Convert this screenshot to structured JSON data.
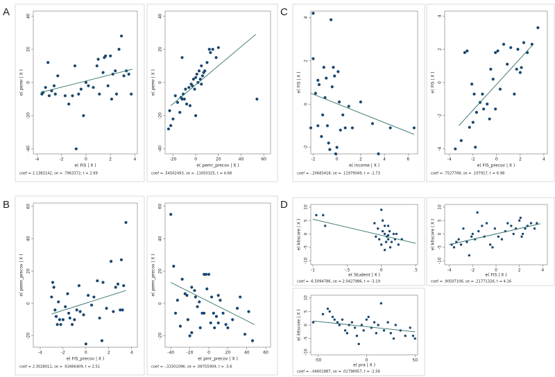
{
  "chart_data": [
    {
      "type": "scatter",
      "panel": "A",
      "xlabel": "e( FIS | X )",
      "ylabel": "e( pemr | X )",
      "note": "coef = 2.1383142, se = .7963372, t = 2.69",
      "color": "#1a476f",
      "line_color": "#2d6d66",
      "x": [
        -3.6,
        -3.5,
        -3.3,
        -3.1,
        -3,
        -2.8,
        -2.6,
        -2.5,
        -2.3,
        -1.7,
        -1.4,
        -1.1,
        -0.9,
        -0.8,
        -0.6,
        -0.4,
        -0.2,
        0,
        0.2,
        0.6,
        0.9,
        1,
        1.1,
        1.4,
        1.5,
        1.6,
        1.8,
        2,
        2.1,
        2.2,
        2.4,
        2.5,
        2.7,
        2.9,
        3.1,
        3.3,
        3.5,
        3.7
      ],
      "y": [
        -7,
        -6,
        -3,
        12,
        -8,
        -5,
        -2,
        -7,
        4,
        -8,
        -13,
        -8,
        10,
        -40,
        -7,
        -4,
        -20,
        0,
        -2,
        -3,
        10,
        14,
        -7,
        6,
        15,
        16,
        -2,
        16,
        -10,
        5,
        7,
        -7,
        20,
        28,
        4,
        7,
        5,
        -7
      ],
      "fit_x": [
        -3.7,
        3.8
      ],
      "fit_y": [
        -6,
        8
      ],
      "xlim": [
        -4.3,
        4.2
      ],
      "ylim": [
        -43,
        43
      ],
      "xticks": [
        -4,
        -2,
        0,
        2,
        4
      ],
      "yticks": [
        -40,
        -20,
        0,
        20,
        40
      ]
    },
    {
      "type": "scatter",
      "xlabel": "e( pemr_precov | X )",
      "ylabel": "e( pemr | X )",
      "note": "coef = .54502493, se = .11650325, t = 4.68",
      "color": "#1a476f",
      "line_color": "#2d6d66",
      "x": [
        -24,
        -23,
        -22,
        -20,
        -18,
        -16,
        -14,
        -13,
        -12,
        -11,
        -10,
        -9,
        -8,
        -6,
        -5,
        -4,
        -3,
        -2,
        -1,
        0,
        0,
        1,
        2,
        3,
        4,
        5,
        6,
        7,
        8,
        10,
        12,
        13,
        15,
        18,
        20,
        -12,
        5,
        54
      ],
      "y": [
        -28,
        -17,
        -26,
        -22,
        -8,
        -12,
        -18,
        -9,
        -10,
        -7,
        -10,
        -4,
        -13,
        -3,
        -14,
        -1,
        -2,
        2,
        -4,
        -20,
        3,
        5,
        0,
        7,
        2,
        10,
        4,
        6,
        7,
        12,
        20,
        18,
        20,
        15,
        21,
        15,
        -1,
        -10
      ],
      "fit_x": [
        -22,
        53
      ],
      "fit_y": [
        -14,
        29
      ],
      "xlim": [
        -27,
        66
      ],
      "ylim": [
        -43,
        43
      ],
      "xticks": [
        -20,
        0,
        20,
        40,
        60
      ],
      "yticks": [
        -40,
        -20,
        0,
        20,
        40
      ]
    },
    {
      "type": "scatter",
      "panel": "C",
      "xlabel": "e( income | X )",
      "ylabel": "e( FIS | X )",
      "note": "coef = -.20683418, se = .11979049, t = -1.73",
      "color": "#1a476f",
      "line_color": "#2d6d66",
      "x": [
        -2,
        -2,
        -1.8,
        -1.6,
        -1.6,
        -1.5,
        -1.3,
        -1.2,
        -1.1,
        -1,
        -0.9,
        -0.8,
        -0.7,
        -0.6,
        -0.5,
        -0.4,
        -0.3,
        -0.2,
        -0.1,
        0,
        0.1,
        0.2,
        0.3,
        0.5,
        0.7,
        1,
        1.3,
        2,
        3,
        3.5,
        4.5,
        6.5,
        -2.2
      ],
      "y": [
        4.2,
        2.1,
        0.5,
        1.1,
        -1,
        0.9,
        -1.5,
        -0.5,
        1.7,
        0.3,
        1.2,
        -1,
        -1.8,
        -2.1,
        3.9,
        0.8,
        1.7,
        1.3,
        -2.3,
        -2,
        1.5,
        0.1,
        -1.2,
        -0.5,
        -1.1,
        -0.1,
        -1.1,
        0.1,
        -0.9,
        -2.3,
        -1.1,
        -1.1,
        -1.1
      ],
      "fit_x": [
        -2.2,
        6.5
      ],
      "fit_y": [
        0.5,
        -1.4
      ],
      "xlim": [
        -2.2,
        6.8
      ],
      "ylim": [
        -2.3,
        4.3
      ],
      "xticks": [
        -2,
        0,
        2,
        4,
        6
      ],
      "yticks": [
        -2,
        0,
        2,
        4
      ]
    },
    {
      "type": "scatter",
      "xlabel": "e( FIS_precov | X )",
      "ylabel": "e( FIS | X )",
      "note": "coef = .7527768, se = .107917, t = 6.98",
      "color": "#1a476f",
      "line_color": "#2d6d66",
      "x": [
        -3.5,
        -3,
        -2.7,
        -2.5,
        -2.3,
        -2.1,
        -2,
        -1.9,
        -1.8,
        -1.7,
        -1.4,
        -1.2,
        -1.1,
        -0.8,
        -0.6,
        -0.5,
        -0.3,
        -0.1,
        0.1,
        0.3,
        0.6,
        0.9,
        1.2,
        1.5,
        1.7,
        1.8,
        2,
        2.1,
        2.3,
        2.6,
        3,
        3.5,
        -0.1
      ],
      "y": [
        -4,
        -3.5,
        1.8,
        1.9,
        -2.7,
        -0.1,
        -2.4,
        -0.7,
        -3.9,
        -1.8,
        -1.2,
        -0.7,
        -1.6,
        -1.3,
        -2.2,
        0.8,
        0.2,
        1.8,
        1.9,
        -0.4,
        2.3,
        1.1,
        2.1,
        -0.7,
        0.8,
        2,
        0.6,
        0.9,
        2.4,
        1.8,
        2.3,
        3.3,
        -1.6
      ],
      "fit_x": [
        -3.2,
        3.1
      ],
      "fit_y": [
        -2.6,
        2.3
      ],
      "xlim": [
        -4.4,
        4.3
      ],
      "ylim": [
        -4.3,
        4.3
      ],
      "xticks": [
        -4,
        -2,
        0,
        2,
        4
      ],
      "yticks": [
        -4,
        -2,
        0,
        2,
        4
      ]
    },
    {
      "type": "scatter",
      "panel": "B",
      "xlabel": "e( FIS_precov | X )",
      "ylabel": "e( pemr_precov | X )",
      "note": "coef = 2.3028011, se = .91666409, t = 2.51",
      "color": "#1a476f",
      "line_color": "#2d6d66",
      "x": [
        -3,
        -2.9,
        -2.8,
        -2.7,
        -2.6,
        -2.5,
        -2.4,
        -2.3,
        -2.2,
        -2,
        -1.8,
        -1.6,
        -1.5,
        -1.4,
        -1.2,
        -1,
        -0.8,
        -0.6,
        -0.5,
        -0.2,
        0,
        0.2,
        0.5,
        0.7,
        1,
        1.2,
        1.4,
        1.5,
        1.8,
        2.2,
        2.4,
        2.6,
        2.8,
        3,
        3.1,
        3.2,
        3.3,
        3.5
      ],
      "y": [
        4,
        13,
        10,
        -4,
        -8,
        -13,
        1,
        -10,
        -13,
        -10,
        -2,
        6,
        -6,
        -9,
        -13,
        -10,
        -4,
        11,
        -5,
        -7,
        -25,
        5,
        -1,
        4,
        14,
        -9,
        -23,
        13,
        -3,
        26,
        -5,
        10,
        12,
        -4,
        27,
        -4,
        11,
        50
      ],
      "fit_x": [
        -3,
        3.5
      ],
      "fit_y": [
        -6.5,
        8
      ],
      "xlim": [
        -4.6,
        4.5
      ],
      "ylim": [
        -27,
        62
      ],
      "xticks": [
        -4,
        -2,
        0,
        2,
        4
      ],
      "yticks": [
        -20,
        0,
        20,
        40,
        60
      ]
    },
    {
      "type": "scatter",
      "xlabel": "e( pmr_precov | X )",
      "ylabel": "e( pemr_precov | X )",
      "note": "coef = -.31501096, se = .08755909, t = -3.6",
      "color": "#1a476f",
      "line_color": "#2d6d66",
      "x": [
        -40,
        -37,
        -35,
        -33,
        -30,
        -28,
        -25,
        -23,
        -22,
        -20,
        -18,
        -15,
        -14,
        -12,
        -10,
        -9,
        -7,
        -5,
        -3,
        -2,
        0,
        2,
        3,
        5,
        6,
        8,
        10,
        12,
        15,
        18,
        20,
        25,
        30,
        33,
        38,
        42,
        46,
        -18,
        -5,
        10
      ],
      "y": [
        55,
        23,
        -6,
        2,
        -14,
        15,
        6,
        5,
        -10,
        -20,
        10,
        8,
        4,
        -2,
        1,
        -15,
        -6,
        18,
        18,
        9,
        18,
        -12,
        4,
        -6,
        -15,
        -8,
        -12,
        2,
        -6,
        -13,
        -15,
        -10,
        -3,
        4,
        -19,
        -5,
        -23,
        -18,
        -6,
        5
      ],
      "fit_x": [
        -40,
        48
      ],
      "fit_y": [
        13,
        -13
      ],
      "xlim": [
        -46,
        65
      ],
      "ylim": [
        -27,
        62
      ],
      "xticks": [
        -40,
        -20,
        0,
        20,
        40,
        60
      ],
      "yticks": [
        -20,
        0,
        20,
        40,
        60
      ]
    },
    {
      "type": "scatter",
      "panel": "D",
      "xlabel": "e( Student | X )",
      "ylabel": "e( k6score | X )",
      "note": "coef = -6.5094786, se = 2.0427986, t = -3.19",
      "color": "#1a476f",
      "line_color": "#2d6d66",
      "x": [
        -0.95,
        -0.85,
        -0.82,
        0,
        0,
        0.05,
        0.1,
        -0.05,
        0.02,
        0.05,
        0.08,
        0.1,
        0.12,
        0.15,
        0.18,
        0.2,
        -0.08,
        -0.1,
        0.25,
        0.3,
        0.02,
        0.07,
        0.13,
        -0.03,
        0.22,
        0.05,
        0.1
      ],
      "y": [
        7,
        7,
        3,
        9,
        -4,
        -6,
        3,
        2,
        1,
        0,
        -1,
        -2,
        1,
        -3,
        0,
        -2,
        -1,
        4,
        -4,
        -2,
        5,
        -3,
        -5,
        -2,
        0,
        3,
        -0.5
      ],
      "fit_x": [
        -1,
        0.5
      ],
      "fit_y": [
        5.5,
        -3.5
      ],
      "xlim": [
        -1.03,
        0.53
      ],
      "ylim": [
        -11.5,
        11
      ],
      "xticks": [
        -1,
        {
          "value": -0.5,
          "label": "-.5"
        },
        0,
        {
          "value": 0.5,
          "label": ".5"
        }
      ],
      "yticks": [
        -10,
        -5,
        0,
        5,
        10
      ]
    },
    {
      "type": "scatter",
      "xlabel": "e( FIS | X )",
      "ylabel": "e( k6score | X )",
      "note": "coef = .90507106, se = .21771326, t = 4.16",
      "color": "#1a476f",
      "line_color": "#2d6d66",
      "x": [
        -3.8,
        -3.6,
        -3.4,
        -3.2,
        -3,
        -2.8,
        -2.5,
        -2.3,
        -2.1,
        -2,
        -1.8,
        -1.6,
        -1.5,
        -1.2,
        -1,
        -0.8,
        -0.5,
        -0.3,
        -0.1,
        0.2,
        0.5,
        0.8,
        1,
        1.3,
        1.5,
        1.7,
        2,
        2.1,
        2.3,
        2.5,
        2.7,
        3,
        3.3,
        3.5,
        2.2
      ],
      "y": [
        -4,
        -5,
        -3,
        -2,
        -4,
        2,
        -3,
        -8,
        -1,
        0,
        -2,
        8,
        1,
        3,
        -1,
        4,
        -4,
        -5,
        2,
        -1,
        -2,
        1,
        4,
        3,
        0,
        2,
        5,
        6,
        0,
        2,
        3,
        4,
        2,
        4,
        -1
      ],
      "fit_x": [
        -4,
        3.8
      ],
      "fit_y": [
        -4,
        3.8
      ],
      "xlim": [
        -4.4,
        4.4
      ],
      "ylim": [
        -11.5,
        11
      ],
      "xticks": [
        -4,
        -2,
        0,
        2,
        4
      ],
      "yticks": [
        -10,
        -5,
        0,
        5,
        10
      ]
    },
    {
      "type": "scatter",
      "xlabel": "e( pra | X )",
      "ylabel": "e( k6score | X )",
      "note": "coef = -.04601887, se = .01798957, t = -2.56",
      "color": "#1a476f",
      "line_color": "#2d6d66",
      "x": [
        -55,
        -45,
        -40,
        -38,
        -35,
        -33,
        -30,
        -28,
        -25,
        -22,
        -20,
        -18,
        -15,
        -12,
        -10,
        -8,
        -5,
        -3,
        0,
        2,
        5,
        8,
        10,
        12,
        15,
        18,
        22,
        25,
        28,
        30,
        35,
        40,
        45,
        48,
        50
      ],
      "y": [
        1,
        4,
        6,
        5,
        3,
        2,
        1,
        0,
        2,
        -2,
        -3,
        0,
        1,
        -1,
        -4,
        -7,
        0,
        -2,
        2,
        3,
        -1,
        1,
        -3,
        0,
        8,
        -2,
        1,
        -3,
        -5,
        0,
        -2,
        -4,
        -1,
        -4,
        -5
      ],
      "fit_x": [
        -55,
        50
      ],
      "fit_y": [
        1.5,
        -2.5
      ],
      "xlim": [
        -57.5,
        52.7
      ],
      "ylim": [
        -11,
        11
      ],
      "xticks": [
        -50,
        0,
        50
      ],
      "yticks": [
        -10,
        -5,
        0,
        5,
        10
      ]
    }
  ]
}
